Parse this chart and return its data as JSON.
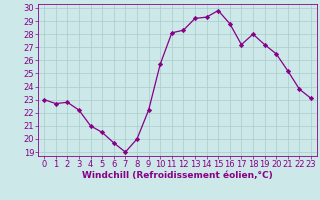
{
  "x": [
    0,
    1,
    2,
    3,
    4,
    5,
    6,
    7,
    8,
    9,
    10,
    11,
    12,
    13,
    14,
    15,
    16,
    17,
    18,
    19,
    20,
    21,
    22,
    23
  ],
  "y": [
    23.0,
    22.7,
    22.8,
    22.2,
    21.0,
    20.5,
    19.7,
    19.0,
    20.0,
    22.2,
    25.7,
    28.1,
    28.3,
    29.2,
    29.3,
    29.8,
    28.8,
    27.2,
    28.0,
    27.2,
    26.5,
    25.2,
    23.8,
    23.1
  ],
  "line_color": "#880088",
  "marker": "D",
  "marker_size": 2.2,
  "bg_color": "#cce8e8",
  "grid_color": "#aacccc",
  "xlabel": "Windchill (Refroidissement éolien,°C)",
  "xlabel_color": "#880088",
  "ylim": [
    19,
    30
  ],
  "xlim": [
    -0.5,
    23.5
  ],
  "yticks": [
    19,
    20,
    21,
    22,
    23,
    24,
    25,
    26,
    27,
    28,
    29,
    30
  ],
  "xticks": [
    0,
    1,
    2,
    3,
    4,
    5,
    6,
    7,
    8,
    9,
    10,
    11,
    12,
    13,
    14,
    15,
    16,
    17,
    18,
    19,
    20,
    21,
    22,
    23
  ],
  "tick_color": "#880088",
  "axis_label_fontsize": 6.5,
  "tick_fontsize": 6.0,
  "line_width": 0.9
}
